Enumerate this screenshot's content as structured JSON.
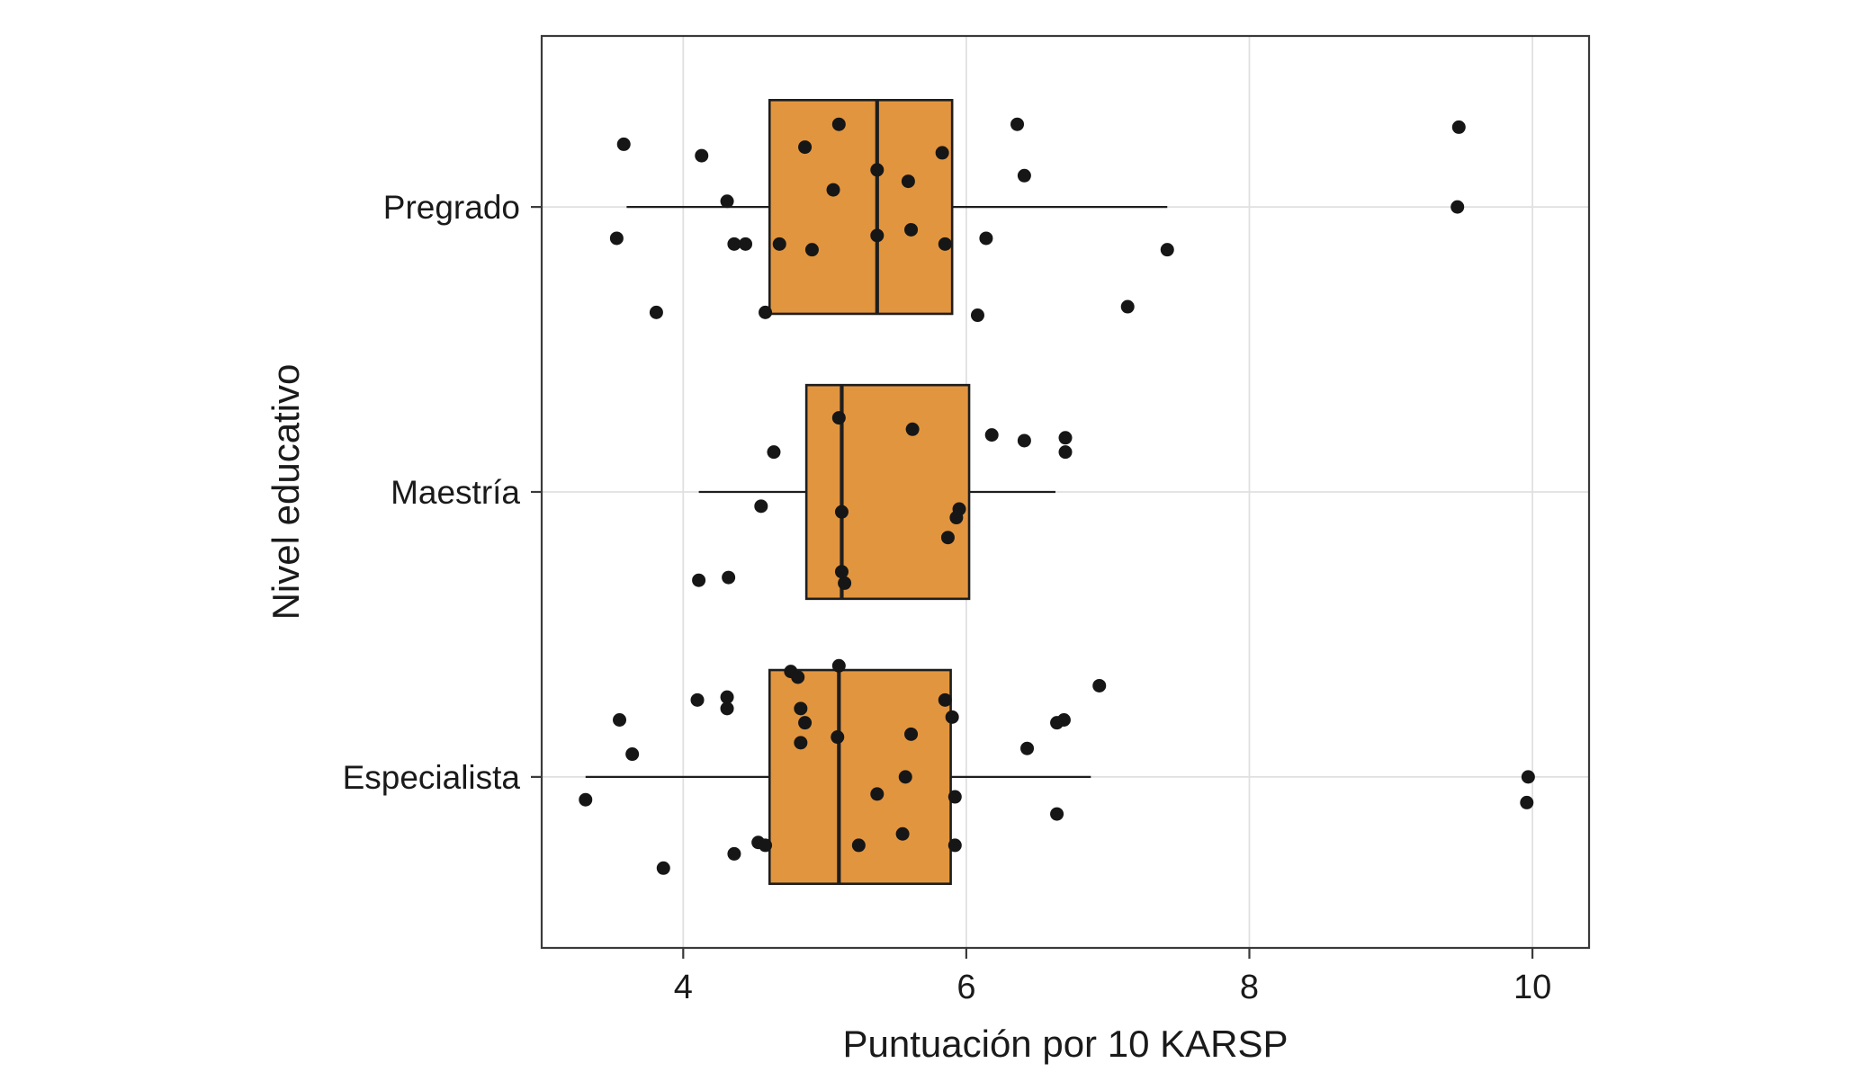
{
  "chart_data": {
    "type": "boxplot",
    "orientation": "horizontal",
    "title": "",
    "xlabel": "Puntuación por 10 KARSP",
    "ylabel": "Nivel educativo",
    "xlim": [
      3.0,
      10.4
    ],
    "xticks": [
      4,
      6,
      8,
      10
    ],
    "categories": [
      "Pregrado",
      "Maestría",
      "Especialista"
    ],
    "grid": true,
    "legend": false,
    "colors": {
      "box_fill": "#E2953F",
      "stroke": "#1e1e1e",
      "point": "#161616",
      "grid": "#e0e0e0",
      "border": "#3a3a3a",
      "text": "#1a1a1a"
    },
    "boxes": [
      {
        "category": "Pregrado",
        "whisker_low": 3.6,
        "q1": 4.61,
        "median": 5.37,
        "q3": 5.9,
        "whisker_high": 7.42
      },
      {
        "category": "Maestría",
        "whisker_low": 4.11,
        "q1": 4.87,
        "median": 5.12,
        "q3": 6.02,
        "whisker_high": 6.63
      },
      {
        "category": "Especialista",
        "whisker_low": 3.31,
        "q1": 4.61,
        "median": 5.1,
        "q3": 5.89,
        "whisker_high": 6.88
      }
    ],
    "points": [
      {
        "category": "Pregrado",
        "values": [
          [
            3.58,
            -0.22
          ],
          [
            4.13,
            -0.18
          ],
          [
            5.1,
            -0.29
          ],
          [
            4.86,
            -0.21
          ],
          [
            5.06,
            -0.06
          ],
          [
            5.37,
            -0.13
          ],
          [
            5.59,
            -0.09
          ],
          [
            5.83,
            -0.19
          ],
          [
            6.36,
            -0.29
          ],
          [
            6.41,
            -0.11
          ],
          [
            9.48,
            -0.28
          ],
          [
            9.47,
            0.0
          ],
          [
            4.31,
            -0.02
          ],
          [
            3.53,
            0.11
          ],
          [
            4.36,
            0.13
          ],
          [
            4.44,
            0.13
          ],
          [
            4.68,
            0.13
          ],
          [
            4.91,
            0.15
          ],
          [
            5.37,
            0.1
          ],
          [
            5.61,
            0.08
          ],
          [
            5.85,
            0.13
          ],
          [
            6.14,
            0.11
          ],
          [
            7.42,
            0.15
          ],
          [
            3.81,
            0.37
          ],
          [
            4.58,
            0.37
          ],
          [
            6.08,
            0.38
          ],
          [
            7.14,
            0.35
          ]
        ]
      },
      {
        "category": "Maestría",
        "values": [
          [
            5.62,
            -0.22
          ],
          [
            5.1,
            -0.26
          ],
          [
            6.18,
            -0.2
          ],
          [
            6.41,
            -0.18
          ],
          [
            6.7,
            -0.19
          ],
          [
            6.7,
            -0.14
          ],
          [
            4.64,
            -0.14
          ],
          [
            4.55,
            0.05
          ],
          [
            5.12,
            0.07
          ],
          [
            5.95,
            0.06
          ],
          [
            5.93,
            0.09
          ],
          [
            5.87,
            0.16
          ],
          [
            4.11,
            0.31
          ],
          [
            4.32,
            0.3
          ],
          [
            5.12,
            0.28
          ],
          [
            5.14,
            0.32
          ]
        ]
      },
      {
        "category": "Especialista",
        "values": [
          [
            5.1,
            -0.39
          ],
          [
            4.76,
            -0.37
          ],
          [
            4.81,
            -0.35
          ],
          [
            6.94,
            -0.32
          ],
          [
            4.1,
            -0.27
          ],
          [
            4.31,
            -0.28
          ],
          [
            4.31,
            -0.24
          ],
          [
            4.83,
            -0.24
          ],
          [
            5.85,
            -0.27
          ],
          [
            3.55,
            -0.2
          ],
          [
            4.86,
            -0.19
          ],
          [
            5.9,
            -0.21
          ],
          [
            6.64,
            -0.19
          ],
          [
            6.69,
            -0.2
          ],
          [
            4.83,
            -0.12
          ],
          [
            5.09,
            -0.14
          ],
          [
            5.61,
            -0.15
          ],
          [
            6.43,
            -0.1
          ],
          [
            3.64,
            -0.08
          ],
          [
            5.57,
            0.0
          ],
          [
            5.37,
            0.06
          ],
          [
            5.92,
            0.07
          ],
          [
            9.97,
            0.0
          ],
          [
            9.96,
            0.09
          ],
          [
            3.31,
            0.08
          ],
          [
            6.64,
            0.13
          ],
          [
            4.36,
            0.27
          ],
          [
            4.53,
            0.23
          ],
          [
            4.58,
            0.24
          ],
          [
            5.24,
            0.24
          ],
          [
            5.55,
            0.2
          ],
          [
            5.92,
            0.24
          ],
          [
            3.86,
            0.32
          ]
        ]
      }
    ]
  }
}
